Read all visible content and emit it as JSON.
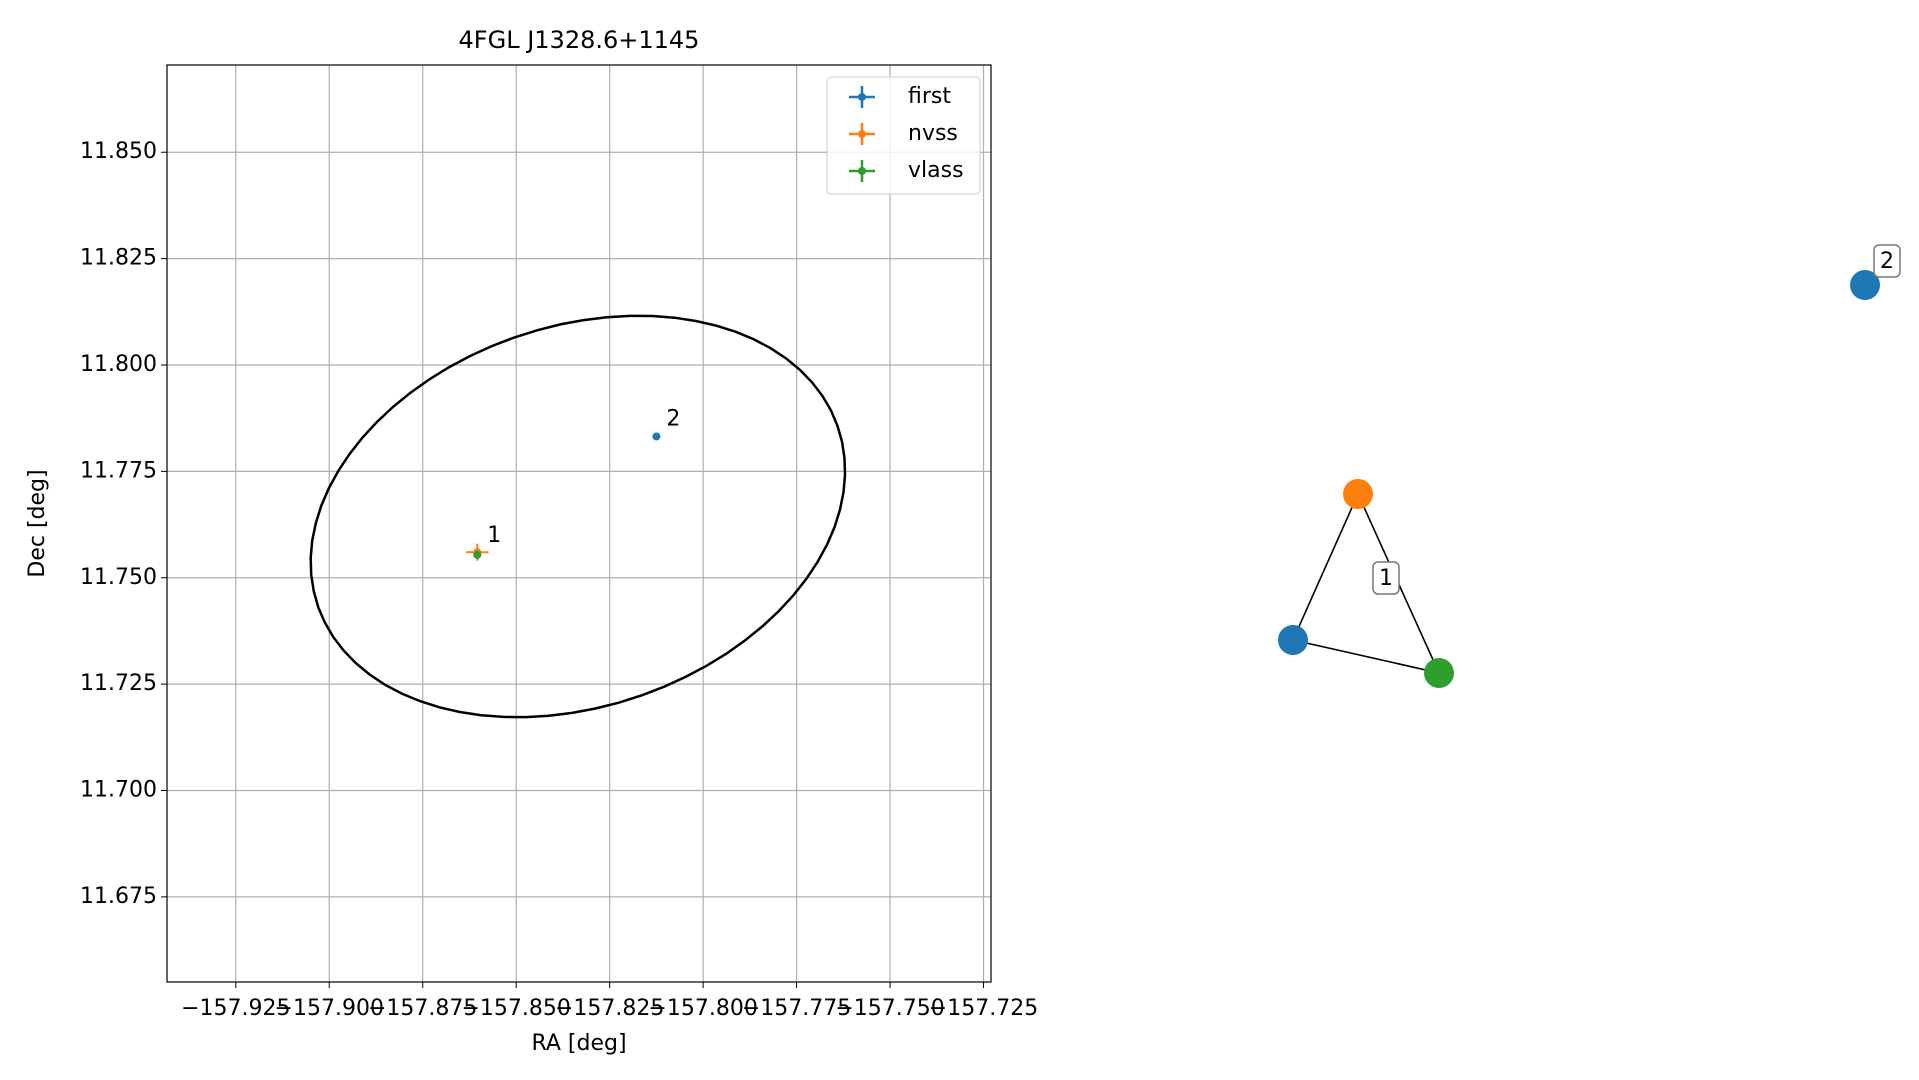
{
  "chart_data": [
    {
      "type": "scatter",
      "title": "4FGL J1328.6+1145",
      "xlabel": "RA [deg]",
      "ylabel": "Dec [deg]",
      "xlim": [
        -157.9434,
        -157.723
      ],
      "ylim": [
        11.655,
        11.8705
      ],
      "xticks": [
        {
          "value": -157.925,
          "label": "−157.925"
        },
        {
          "value": -157.9,
          "label": "−157.900"
        },
        {
          "value": -157.875,
          "label": "−157.875"
        },
        {
          "value": -157.85,
          "label": "−157.850"
        },
        {
          "value": -157.825,
          "label": "−157.825"
        },
        {
          "value": -157.8,
          "label": "−157.800"
        },
        {
          "value": -157.775,
          "label": "−157.775"
        },
        {
          "value": -157.75,
          "label": "−157.750"
        },
        {
          "value": -157.725,
          "label": "−157.725"
        }
      ],
      "yticks": [
        {
          "value": 11.675,
          "label": "11.675"
        },
        {
          "value": 11.7,
          "label": "11.700"
        },
        {
          "value": 11.725,
          "label": "11.725"
        },
        {
          "value": 11.75,
          "label": "11.750"
        },
        {
          "value": 11.775,
          "label": "11.775"
        },
        {
          "value": 11.8,
          "label": "11.800"
        },
        {
          "value": 11.825,
          "label": "11.825"
        },
        {
          "value": 11.85,
          "label": "11.850"
        }
      ],
      "grid": true,
      "legend": "upper right",
      "series": [
        {
          "name": "first",
          "color": "#1f77b4",
          "x": [
            -157.8604,
            -157.8125
          ],
          "y": [
            11.7558,
            11.7832
          ],
          "xerr": [
            0.0005,
            0.0005
          ],
          "yerr": [
            0.0005,
            0.0005
          ]
        },
        {
          "name": "nvss",
          "color": "#ff7f0e",
          "x": [
            -157.8604
          ],
          "y": [
            11.756
          ],
          "xerr": [
            0.003
          ],
          "yerr": [
            0.002
          ]
        },
        {
          "name": "vlass",
          "color": "#2ca02c",
          "x": [
            -157.8604
          ],
          "y": [
            11.7554
          ],
          "xerr": [
            0.0005
          ],
          "yerr": [
            0.001
          ]
        }
      ],
      "ellipse": {
        "center": [
          -157.8335,
          11.7644
        ],
        "semi_major": 0.0728,
        "semi_minor": 0.0451,
        "angle": 14,
        "color": "#000000"
      },
      "annotations": [
        {
          "text": "1",
          "x": -157.8604,
          "y": 11.7558
        },
        {
          "text": "2",
          "x": -157.8125,
          "y": 11.7832
        }
      ]
    },
    {
      "type": "network",
      "nodes": [
        {
          "color": "#1f77b4"
        },
        {
          "color": "#ff7f0e"
        },
        {
          "color": "#2ca02c"
        },
        {
          "color": "#1f77b4"
        }
      ],
      "edges": [
        [
          0,
          1
        ],
        [
          1,
          2
        ],
        [
          2,
          0
        ]
      ],
      "groups": [
        {
          "label": "1",
          "nodes": [
            0,
            1,
            2
          ]
        },
        {
          "label": "2",
          "nodes": [
            3
          ]
        }
      ]
    }
  ]
}
